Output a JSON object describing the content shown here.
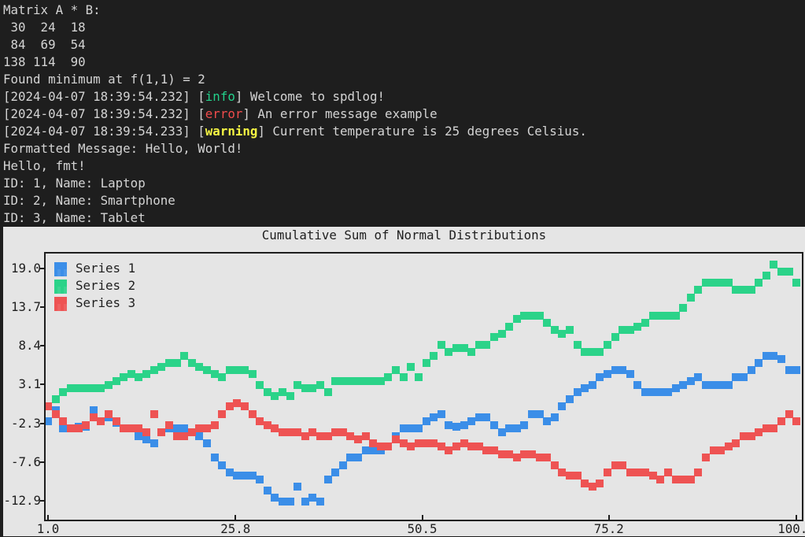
{
  "terminal": {
    "lines": [
      {
        "text": "Matrix A * B:"
      },
      {
        "text": " 30  24  18"
      },
      {
        "text": " 84  69  54"
      },
      {
        "text": "138 114  90"
      },
      {
        "text": "Found minimum at f(1,1) = 2"
      },
      {
        "prefix": "[2024-04-07 18:39:54.232] [",
        "level": "info",
        "suffix": "] Welcome to spdlog!"
      },
      {
        "prefix": "[2024-04-07 18:39:54.232] [",
        "level": "error",
        "suffix": "] An error message example"
      },
      {
        "prefix": "[2024-04-07 18:39:54.233] [",
        "level": "warning",
        "suffix": "] Current temperature is 25 degrees Celsius."
      },
      {
        "text": "Formatted Message: Hello, World!"
      },
      {
        "text": "Hello, fmt!"
      },
      {
        "text": "ID: 1, Name: Laptop"
      },
      {
        "text": "ID: 2, Name: Smartphone"
      },
      {
        "text": "ID: 3, Name: Tablet"
      }
    ]
  },
  "colors": {
    "terminal_bg": "#1e1e1e",
    "terminal_fg": "#d4d4d4",
    "info": "#23d18b",
    "error": "#f14c4c",
    "warning": "#f5f543",
    "plot_bg": "#e5e5e5"
  },
  "chart_data": {
    "type": "line",
    "title": "Cumulative Sum of Normal Distributions",
    "xlim": [
      1.0,
      100.0
    ],
    "ylim": [
      -15.5,
      21.0
    ],
    "x_ticks": [
      "1.0",
      "25.8",
      "50.5",
      "75.2",
      "100.0"
    ],
    "y_ticks": [
      "19.0",
      "13.7",
      "8.4",
      "3.1",
      "-2.3",
      "-7.6",
      "-12.9"
    ],
    "legend_position": "top-left",
    "x": [
      1,
      2,
      3,
      4,
      5,
      6,
      7,
      8,
      9,
      10,
      11,
      12,
      13,
      14,
      15,
      16,
      17,
      18,
      19,
      20,
      21,
      22,
      23,
      24,
      25,
      26,
      27,
      28,
      29,
      30,
      31,
      32,
      33,
      34,
      35,
      36,
      37,
      38,
      39,
      40,
      41,
      42,
      43,
      44,
      45,
      46,
      47,
      48,
      49,
      50,
      51,
      52,
      53,
      54,
      55,
      56,
      57,
      58,
      59,
      60,
      61,
      62,
      63,
      64,
      65,
      66,
      67,
      68,
      69,
      70,
      71,
      72,
      73,
      74,
      75,
      76,
      77,
      78,
      79,
      80,
      81,
      82,
      83,
      84,
      85,
      86,
      87,
      88,
      89,
      90,
      91,
      92,
      93,
      94,
      95,
      96,
      97,
      98,
      99,
      100
    ],
    "series": [
      {
        "name": "Series 1",
        "color": "#3b8ee8",
        "values": [
          -2.0,
          -0.5,
          -3.0,
          -3.0,
          -2.8,
          -2.8,
          -0.5,
          -2.0,
          -1.5,
          -2.2,
          -3.0,
          -3.0,
          -4.0,
          -4.5,
          -5.0,
          -3.5,
          -3.0,
          -3.0,
          -3.0,
          -3.5,
          -4.0,
          -5.0,
          -7.0,
          -8.0,
          -9.0,
          -9.5,
          -9.5,
          -9.5,
          -10.0,
          -11.5,
          -12.5,
          -13.0,
          -13.0,
          -11.0,
          -13.0,
          -12.5,
          -13.0,
          -10.0,
          -9.0,
          -8.0,
          -7.0,
          -7.0,
          -6.0,
          -6.0,
          -6.0,
          -5.5,
          -4.0,
          -3.0,
          -3.0,
          -3.0,
          -2.0,
          -1.5,
          -1.0,
          -2.5,
          -2.8,
          -2.5,
          -2.0,
          -1.5,
          -1.5,
          -2.5,
          -3.5,
          -3.0,
          -3.0,
          -2.5,
          -1.0,
          -1.0,
          -2.0,
          -1.5,
          0.0,
          1.0,
          2.0,
          2.5,
          3.0,
          4.0,
          4.5,
          5.0,
          5.0,
          4.5,
          3.0,
          2.0,
          2.0,
          2.0,
          2.0,
          2.5,
          3.0,
          3.5,
          4.0,
          3.0,
          3.0,
          3.0,
          3.0,
          4.0,
          4.0,
          5.0,
          6.0,
          7.0,
          7.0,
          6.5,
          5.0,
          5.0
        ]
      },
      {
        "name": "Series 2",
        "color": "#2bd389",
        "values": [
          0.0,
          1.0,
          2.0,
          2.5,
          2.5,
          2.5,
          2.5,
          2.5,
          3.0,
          3.5,
          4.0,
          4.5,
          4.0,
          4.5,
          5.0,
          5.5,
          6.0,
          6.0,
          7.0,
          6.0,
          5.5,
          5.0,
          4.5,
          4.0,
          5.0,
          5.0,
          5.0,
          4.5,
          3.0,
          2.0,
          1.5,
          2.0,
          1.5,
          3.0,
          2.5,
          2.5,
          3.0,
          2.0,
          3.5,
          3.5,
          3.5,
          3.5,
          3.5,
          3.5,
          3.5,
          4.0,
          5.0,
          4.0,
          5.5,
          4.0,
          6.0,
          7.0,
          8.5,
          7.5,
          8.0,
          8.0,
          7.5,
          8.5,
          8.5,
          9.5,
          10.0,
          11.0,
          12.0,
          12.5,
          12.5,
          12.5,
          11.5,
          10.5,
          10.0,
          10.5,
          8.5,
          7.5,
          7.5,
          7.5,
          8.5,
          9.5,
          10.5,
          10.5,
          11.0,
          11.5,
          12.5,
          12.5,
          12.5,
          12.5,
          13.5,
          15.0,
          16.0,
          17.0,
          17.0,
          17.0,
          17.0,
          16.0,
          16.0,
          16.0,
          17.0,
          18.0,
          19.5,
          18.5,
          18.5,
          17.0
        ]
      },
      {
        "name": "Series 3",
        "color": "#ee5353",
        "values": [
          0.0,
          -1.0,
          -2.0,
          -3.0,
          -3.0,
          -2.5,
          -1.5,
          -2.0,
          -1.0,
          -2.0,
          -3.0,
          -3.0,
          -3.0,
          -3.5,
          -1.0,
          -3.5,
          -2.5,
          -4.0,
          -4.0,
          -3.5,
          -3.0,
          -3.0,
          -2.5,
          -1.0,
          0.0,
          0.5,
          0.0,
          -1.0,
          -2.0,
          -2.5,
          -3.0,
          -3.5,
          -3.5,
          -3.5,
          -4.0,
          -3.5,
          -4.0,
          -4.0,
          -3.5,
          -3.5,
          -4.0,
          -4.5,
          -4.0,
          -5.0,
          -5.5,
          -5.5,
          -4.5,
          -5.0,
          -5.5,
          -5.0,
          -5.0,
          -5.0,
          -5.5,
          -6.0,
          -5.5,
          -5.0,
          -5.5,
          -5.5,
          -6.0,
          -6.0,
          -6.5,
          -6.5,
          -7.0,
          -6.5,
          -6.5,
          -7.0,
          -7.0,
          -8.0,
          -9.0,
          -9.5,
          -9.5,
          -10.5,
          -11.0,
          -10.5,
          -9.0,
          -8.0,
          -8.0,
          -9.0,
          -9.0,
          -9.0,
          -9.5,
          -10.0,
          -9.0,
          -10.0,
          -10.0,
          -10.0,
          -9.0,
          -7.0,
          -6.0,
          -6.0,
          -5.5,
          -5.0,
          -4.0,
          -4.0,
          -3.5,
          -3.0,
          -3.0,
          -2.0,
          -1.0,
          -2.0
        ]
      }
    ]
  }
}
